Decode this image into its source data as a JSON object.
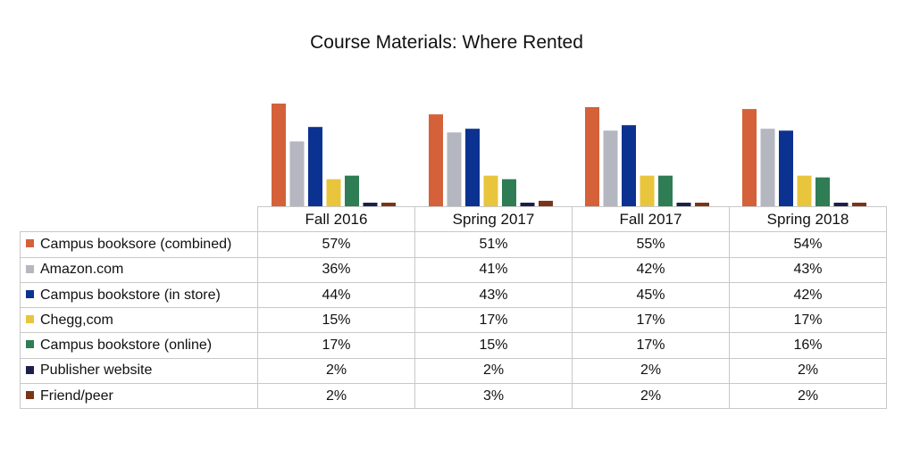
{
  "chart_data": {
    "type": "bar",
    "title": "Course Materials: Where Rented",
    "categories": [
      "Fall 2016",
      "Spring 2017",
      "Fall 2017",
      "Spring 2018"
    ],
    "series": [
      {
        "name": "Campus booksore (combined)",
        "color": "#d4613a",
        "values": [
          57,
          51,
          55,
          54
        ],
        "labels": [
          "57%",
          "51%",
          "55%",
          "54%"
        ]
      },
      {
        "name": "Amazon.com",
        "color": "#b4b6c0",
        "values": [
          36,
          41,
          42,
          43
        ],
        "labels": [
          "36%",
          "41%",
          "42%",
          "43%"
        ]
      },
      {
        "name": "Campus bookstore (in store)",
        "color": "#0b3290",
        "values": [
          44,
          43,
          45,
          42
        ],
        "labels": [
          "44%",
          "43%",
          "45%",
          "42%"
        ]
      },
      {
        "name": "Chegg,com",
        "color": "#e8c53c",
        "values": [
          15,
          17,
          17,
          17
        ],
        "labels": [
          "15%",
          "17%",
          "17%",
          "17%"
        ]
      },
      {
        "name": "Campus bookstore (online)",
        "color": "#2f7d54",
        "values": [
          17,
          15,
          17,
          16
        ],
        "labels": [
          "17%",
          "15%",
          "17%",
          "16%"
        ]
      },
      {
        "name": "Publisher website",
        "color": "#1c1f4a",
        "values": [
          2,
          2,
          2,
          2
        ],
        "labels": [
          "2%",
          "2%",
          "2%",
          "2%"
        ]
      },
      {
        "name": "Friend/peer",
        "color": "#7a3418",
        "values": [
          2,
          3,
          2,
          2
        ],
        "labels": [
          "2%",
          "3%",
          "2%",
          "2%"
        ]
      }
    ],
    "ylim": [
      0,
      60
    ],
    "xlabel": "",
    "ylabel": "",
    "grid": false,
    "legend": "data-table"
  }
}
